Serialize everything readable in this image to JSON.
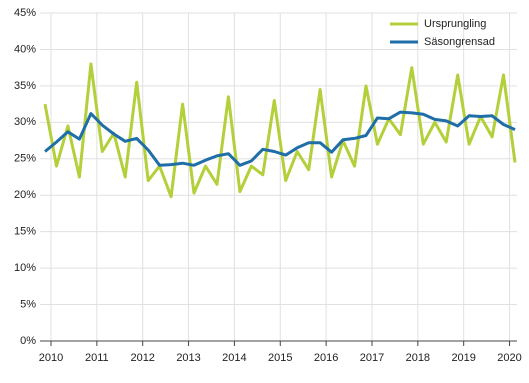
{
  "chart_data": {
    "type": "line",
    "categories": [
      "2010",
      null,
      null,
      null,
      "2011",
      null,
      null,
      null,
      "2012",
      null,
      null,
      null,
      "2013",
      null,
      null,
      null,
      "2014",
      null,
      null,
      null,
      "2015",
      null,
      null,
      null,
      "2016",
      null,
      null,
      null,
      "2017",
      null,
      null,
      null,
      "2018",
      null,
      null,
      null,
      "2019",
      null,
      null,
      null,
      "2020",
      null
    ],
    "series": [
      {
        "name": "Ursprungling",
        "color": "#b3cf3a",
        "values": [
          32.5,
          24,
          29.5,
          22.5,
          38,
          26,
          28.5,
          22.5,
          35.5,
          22,
          24,
          19.8,
          32.5,
          20.3,
          24,
          21.5,
          33.5,
          20.5,
          24,
          22.8,
          33,
          22,
          26,
          23.5,
          34.5,
          22.5,
          27.5,
          24,
          35,
          27,
          30.5,
          28.3,
          37.5,
          27,
          30,
          27.3,
          36.5,
          27,
          30.8,
          28,
          36.5,
          24.5
        ]
      },
      {
        "name": "Säsongrensad",
        "color": "#1f6ea8",
        "values": [
          26,
          27.3,
          28.7,
          27.7,
          31.2,
          29.6,
          28.4,
          27.4,
          27.8,
          26.2,
          24.1,
          24.2,
          24.4,
          24.1,
          24.8,
          25.4,
          25.7,
          24.1,
          24.7,
          26.3,
          26,
          25.5,
          26.5,
          27.2,
          27.2,
          25.9,
          27.6,
          27.8,
          28.2,
          30.6,
          30.5,
          31.4,
          31.3,
          31.1,
          30.4,
          30.2,
          29.5,
          30.9,
          30.8,
          30.9,
          29.7,
          29
        ]
      }
    ],
    "ylim": [
      0,
      45
    ],
    "yticks": [
      {
        "value": 0,
        "label": "0%"
      },
      {
        "value": 5,
        "label": "5%"
      },
      {
        "value": 10,
        "label": "10%"
      },
      {
        "value": 15,
        "label": "15%"
      },
      {
        "value": 20,
        "label": "20%"
      },
      {
        "value": 25,
        "label": "25%"
      },
      {
        "value": 30,
        "label": "30%"
      },
      {
        "value": 35,
        "label": "35%"
      },
      {
        "value": 40,
        "label": "40%"
      },
      {
        "value": 45,
        "label": "45%"
      }
    ],
    "grid": true,
    "legend": "top-right"
  }
}
